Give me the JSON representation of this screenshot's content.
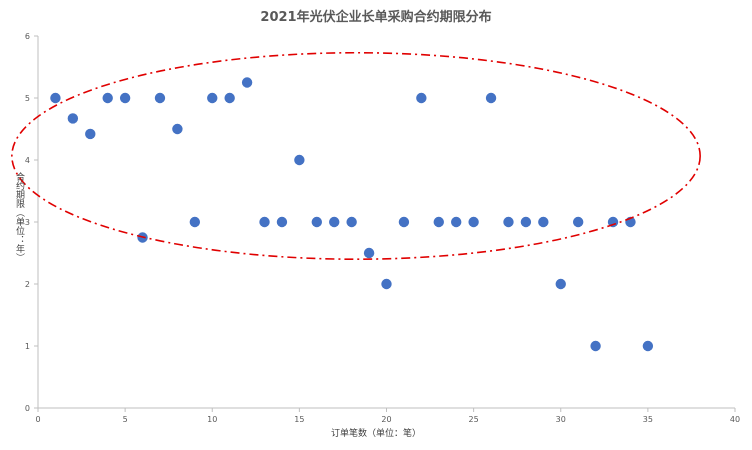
{
  "chart_data": {
    "type": "scatter",
    "title": "2021年光伏企业长单采购合约期限分布",
    "xlabel": "订单笔数（单位：笔）",
    "ylabel": "合约期限（单位：年）",
    "xlim": [
      0,
      40
    ],
    "ylim": [
      0,
      6
    ],
    "x_ticks": [
      0,
      5,
      10,
      15,
      20,
      25,
      30,
      35,
      40
    ],
    "y_ticks": [
      0,
      1,
      2,
      3,
      4,
      5,
      6
    ],
    "grid": false,
    "legend": "none",
    "marker_color": "#4472C4",
    "annotation_color": "#E00000",
    "annotation": {
      "shape": "dash-dot ellipse",
      "x_range": [
        -1.5,
        38
      ],
      "y_range": [
        2.4,
        5.73
      ]
    },
    "points": [
      {
        "x": 1,
        "y": 5
      },
      {
        "x": 2,
        "y": 4.67
      },
      {
        "x": 3,
        "y": 4.42
      },
      {
        "x": 4,
        "y": 5
      },
      {
        "x": 5,
        "y": 5
      },
      {
        "x": 6,
        "y": 2.75
      },
      {
        "x": 7,
        "y": 5
      },
      {
        "x": 8,
        "y": 4.5
      },
      {
        "x": 9,
        "y": 3
      },
      {
        "x": 10,
        "y": 5
      },
      {
        "x": 11,
        "y": 5
      },
      {
        "x": 12,
        "y": 5.25
      },
      {
        "x": 13,
        "y": 3
      },
      {
        "x": 14,
        "y": 3
      },
      {
        "x": 15,
        "y": 4
      },
      {
        "x": 16,
        "y": 3
      },
      {
        "x": 17,
        "y": 3
      },
      {
        "x": 18,
        "y": 3
      },
      {
        "x": 19,
        "y": 2.5
      },
      {
        "x": 20,
        "y": 2
      },
      {
        "x": 21,
        "y": 3
      },
      {
        "x": 22,
        "y": 5
      },
      {
        "x": 23,
        "y": 3
      },
      {
        "x": 24,
        "y": 3
      },
      {
        "x": 25,
        "y": 3
      },
      {
        "x": 26,
        "y": 5
      },
      {
        "x": 27,
        "y": 3
      },
      {
        "x": 28,
        "y": 3
      },
      {
        "x": 29,
        "y": 3
      },
      {
        "x": 30,
        "y": 2
      },
      {
        "x": 31,
        "y": 3
      },
      {
        "x": 32,
        "y": 1
      },
      {
        "x": 33,
        "y": 3
      },
      {
        "x": 34,
        "y": 3
      },
      {
        "x": 35,
        "y": 1
      }
    ]
  }
}
